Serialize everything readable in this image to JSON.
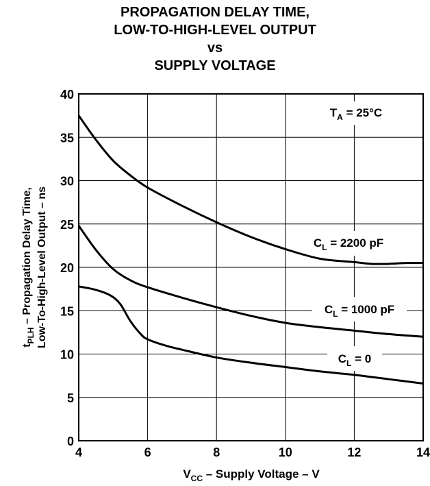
{
  "chart_data": {
    "type": "line",
    "title_lines": [
      "PROPAGATION DELAY TIME,",
      "LOW-TO-HIGH-LEVEL OUTPUT",
      "vs",
      "SUPPLY VOLTAGE"
    ],
    "xlabel": {
      "pre": "V",
      "sub": "CC",
      "post": " – Supply Voltage – V"
    },
    "ylabel": {
      "line1": {
        "pre": "t",
        "sub": "PLH",
        "post": " – Propagation Delay Time,"
      },
      "line2": "Low-To-High-Level Output – ns"
    },
    "xlim": [
      4,
      14
    ],
    "ylim": [
      0,
      40
    ],
    "xticks": [
      4,
      6,
      8,
      10,
      12,
      14
    ],
    "yticks": [
      0,
      5,
      10,
      15,
      20,
      25,
      30,
      35,
      40
    ],
    "grid": true,
    "annotation": {
      "pre": "T",
      "sub": "A",
      "post": " = 25°C"
    },
    "series": [
      {
        "name": "CL = 2200 pF",
        "label": {
          "pre": "C",
          "sub": "L",
          "post": " = 2200 pF"
        },
        "x": [
          4,
          4.5,
          5,
          5.5,
          6,
          7,
          8,
          9,
          10,
          11,
          12,
          12.5,
          13,
          13.5,
          14
        ],
        "y": [
          37.5,
          34.7,
          32.3,
          30.6,
          29.2,
          27.1,
          25.2,
          23.5,
          22.1,
          21.0,
          20.6,
          20.4,
          20.4,
          20.5,
          20.5
        ]
      },
      {
        "name": "CL = 1000 pF",
        "label": {
          "pre": "C",
          "sub": "L",
          "post": " = 1000 pF"
        },
        "x": [
          4,
          4.5,
          5,
          5.5,
          6,
          7,
          8,
          9,
          10,
          11,
          12,
          13,
          14
        ],
        "y": [
          24.8,
          22.0,
          19.8,
          18.5,
          17.7,
          16.5,
          15.4,
          14.4,
          13.6,
          13.1,
          12.7,
          12.3,
          12.0
        ]
      },
      {
        "name": "CL = 0",
        "label": {
          "pre": "C",
          "sub": "L",
          "post": " = 0"
        },
        "x": [
          4,
          4.5,
          4.9,
          5.2,
          5.5,
          5.8,
          6,
          6.5,
          7,
          8,
          9,
          10,
          11,
          12,
          13,
          14
        ],
        "y": [
          17.8,
          17.4,
          16.8,
          15.8,
          13.8,
          12.3,
          11.7,
          11.0,
          10.5,
          9.6,
          9.0,
          8.5,
          8.0,
          7.6,
          7.1,
          6.6
        ]
      }
    ]
  }
}
